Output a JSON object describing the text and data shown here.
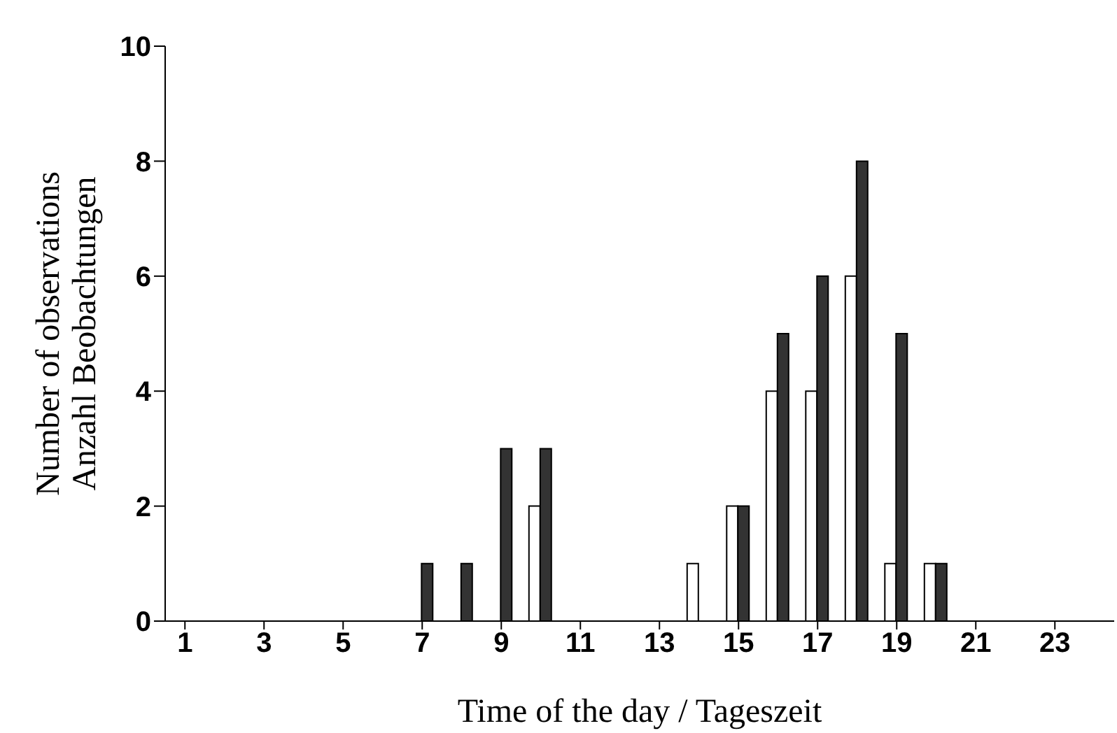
{
  "chart_data": {
    "type": "bar",
    "xlabel": "Time of the day / Tageszeit",
    "ylabel": "Number of observations\nAnzahl Beobachtungen",
    "x": [
      1,
      2,
      3,
      4,
      5,
      6,
      7,
      8,
      9,
      10,
      11,
      12,
      13,
      14,
      15,
      16,
      17,
      18,
      19,
      20,
      21,
      22,
      23,
      24
    ],
    "xlim": [
      0.5,
      24.5
    ],
    "xticks": [
      1,
      3,
      5,
      7,
      9,
      11,
      13,
      15,
      17,
      19,
      21,
      23
    ],
    "series": [
      {
        "color": "#ffffff",
        "values": [
          0,
          0,
          0,
          0,
          0,
          0,
          0,
          0,
          0,
          2,
          0,
          0,
          0,
          1,
          2,
          4,
          4,
          6,
          1,
          1,
          0,
          0,
          0,
          0
        ]
      },
      {
        "color": "#333333",
        "values": [
          0,
          0,
          0,
          0,
          0,
          0,
          1,
          1,
          3,
          3,
          0,
          0,
          0,
          0,
          2,
          5,
          6,
          8,
          5,
          1,
          0,
          0,
          0,
          0
        ]
      }
    ],
    "ylim": [
      0,
      10
    ],
    "yticks": [
      0,
      2,
      4,
      6,
      8,
      10
    ],
    "grid": false,
    "legend": false
  }
}
